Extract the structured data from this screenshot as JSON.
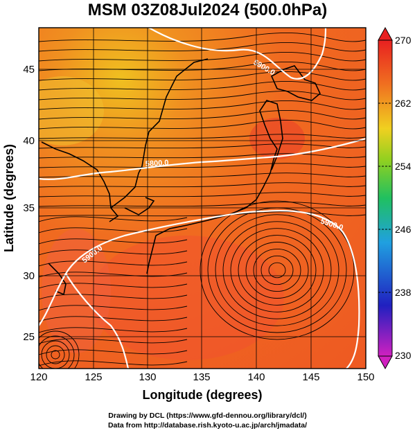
{
  "title": "MSM 03Z08Jul2024 (500.0hPa)",
  "map": {
    "xlabel": "Longitude (degrees)",
    "ylabel": "Latitude  (degrees)",
    "lon_range": [
      120,
      150
    ],
    "lat_range": [
      22.6,
      47.9
    ],
    "lon_ticks": [
      "120",
      "125",
      "130",
      "135",
      "140",
      "145",
      "150"
    ],
    "lat_ticks": [
      "25",
      "30",
      "35",
      "40",
      "45"
    ],
    "contour_labels": [
      "5900.0",
      "5800.0",
      "5900.0",
      "5900.0"
    ]
  },
  "colorbar": {
    "labels": [
      "270",
      "262",
      "254",
      "246",
      "238",
      "230"
    ],
    "range": [
      230,
      270
    ],
    "colors": [
      "#d020c0",
      "#2020c0",
      "#20a0e0",
      "#20c060",
      "#90d020",
      "#f0d020",
      "#f07020",
      "#e82020"
    ]
  },
  "credits": {
    "line1": "Drawing by DCL (https://www.gfd-dennou.org/library/dcl/)",
    "line2": "Data from http://database.rish.kyoto-u.ac.jp/arch/jmadata/"
  }
}
